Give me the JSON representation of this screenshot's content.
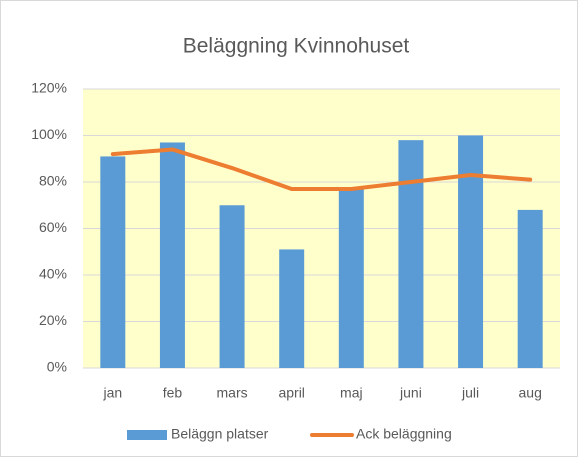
{
  "chart_data": {
    "type": "bar",
    "title": "Beläggning Kvinnohuset",
    "categories": [
      "jan",
      "feb",
      "mars",
      "april",
      "maj",
      "juni",
      "juli",
      "aug"
    ],
    "series": [
      {
        "name": "Beläggn platser",
        "type": "bar",
        "color": "#5b9bd5",
        "values": [
          91,
          97,
          70,
          51,
          77,
          98,
          100,
          68
        ]
      },
      {
        "name": "Ack beläggning",
        "type": "line",
        "color": "#ed7d31",
        "values": [
          92,
          94,
          86,
          77,
          77,
          80,
          83,
          81
        ]
      }
    ],
    "ylim": [
      0,
      120
    ],
    "yticks": [
      {
        "value": 0,
        "label": "0%"
      },
      {
        "value": 20,
        "label": "20%"
      },
      {
        "value": 40,
        "label": "40%"
      },
      {
        "value": 60,
        "label": "60%"
      },
      {
        "value": 80,
        "label": "80%"
      },
      {
        "value": 100,
        "label": "100%"
      },
      {
        "value": 120,
        "label": "120%"
      }
    ],
    "grid": true,
    "legend": "bottom",
    "plot_background": "#ffffcc"
  }
}
